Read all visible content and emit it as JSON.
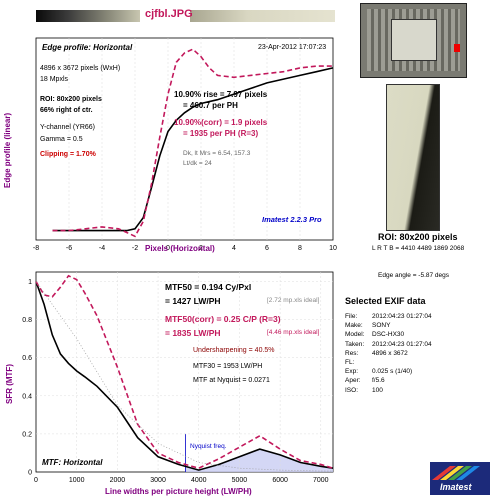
{
  "file_title": "cjfbl.JPG",
  "edge": {
    "title": "Edge profile: Horizontal",
    "date": "23-Apr-2012 17:07:23",
    "pixels": "4896 x 3672 pixels (WxH)",
    "mpxls": "18 Mpxls",
    "roi": "ROI: 80x200 pixels",
    "roi_pos": "66% right of ctr.",
    "channel": "Y-channel  (YR66)",
    "gamma": "Gamma = 0.5",
    "clipping": "Clipping = 1.70%",
    "rise": "10.90% rise = 7.97 pixels",
    "rise_ph": "= 460.7 per PH",
    "rise_corr": "10.90%(corr) = 1.9 pixels",
    "rise_corr_ph": "= 1935 per PH  (R=3)",
    "dk_lt": "Dk, lt Mrs = 6.54, 157.3",
    "ltdk": "Lt/dk = 24",
    "version": "Imatest 2.2.3 Pro",
    "ylabel": "Edge profile (linear)",
    "xlabel": "Pixels (Horizontal)"
  },
  "mtf": {
    "mtf50": "MTF50 = 0.194 Cy/Pxl",
    "mtf50_lw": "= 1427 LW/PH",
    "ideal1": "[2.72 mp.xls ideal]",
    "mtf50_corr": "MTF50(corr) = 0.25 C/P  (R=3)",
    "mtf50_corr_lw": "= 1835 LW/PH",
    "ideal2": "[4.46 mp.xls ideal]",
    "undersharp": "Undersharpening = 40.5%",
    "mtf30": "MTF30 = 1953 LW/PH",
    "nyq_val": "MTF at Nyquist = 0.0271",
    "nyq_label": "Nyquist freq.",
    "title": "MTF: Horizontal",
    "ylabel": "SFR (MTF)",
    "xlabel": "Line widths per picture height (LW/PH)"
  },
  "roi_panel": {
    "label": "ROI: 80x200 pixels",
    "lrtb": "L R T B = 4410 4489 1869 2068",
    "edge_angle": "Edge angle = -5.87 degs"
  },
  "exif": {
    "title": "Selected EXIF data",
    "rows": [
      {
        "k": "File:",
        "v": "2012:04:23 01:27:04"
      },
      {
        "k": "Make:",
        "v": "SONY"
      },
      {
        "k": "Model:",
        "v": "DSC-HX30"
      },
      {
        "k": "Taken:",
        "v": "2012:04:23 01:27:04"
      },
      {
        "k": "Res:",
        "v": "4896 x 3672"
      },
      {
        "k": "FL:",
        "v": ""
      },
      {
        "k": "Exp:",
        "v": "0.025 s  (1/40)"
      },
      {
        "k": "Aper:",
        "v": "f/5.6"
      },
      {
        "k": "ISO:",
        "v": "100"
      }
    ]
  },
  "logo": "Imatest",
  "colors": {
    "corrected": "#c2185b",
    "raw": "#000000",
    "accent_red": "#cc0000",
    "blue": "#0000c8",
    "purple": "#800080"
  },
  "chart_data": [
    {
      "type": "line",
      "title": "Edge profile: Horizontal",
      "xlabel": "Pixels (Horizontal)",
      "ylabel": "Edge profile (linear)",
      "xlim": [
        -8,
        10
      ],
      "ylim": [
        0,
        1.08
      ],
      "xticks": [
        "-8",
        "-6",
        "-4",
        "-2",
        "0",
        "2",
        "4",
        "6",
        "8",
        "10"
      ],
      "series": [
        {
          "style": "solid",
          "x": [
            -7,
            -6,
            -5,
            -4,
            -3,
            -2.5,
            -2,
            -1.5,
            -1,
            -0.5,
            0,
            0.5,
            1,
            1.5,
            2,
            3,
            4,
            5,
            6,
            7,
            8,
            9,
            10
          ],
          "y": [
            0.05,
            0.05,
            0.05,
            0.05,
            0.05,
            0.05,
            0.06,
            0.12,
            0.28,
            0.45,
            0.58,
            0.64,
            0.68,
            0.71,
            0.73,
            0.75,
            0.78,
            0.81,
            0.84,
            0.86,
            0.88,
            0.9,
            0.92
          ]
        },
        {
          "style": "dashed",
          "x": [
            -7,
            -6,
            -5,
            -4,
            -3,
            -2.5,
            -2,
            -1.5,
            -1,
            -0.5,
            0,
            0.5,
            1,
            1.5,
            2,
            2.5,
            3,
            4,
            5,
            6,
            7,
            8,
            9,
            10
          ],
          "y": [
            0.05,
            0.05,
            0.06,
            0.07,
            0.06,
            0.04,
            0.02,
            0.1,
            0.3,
            0.55,
            0.78,
            0.95,
            1.0,
            1.02,
            0.98,
            0.92,
            0.88,
            0.87,
            0.88,
            0.89,
            0.9,
            0.92,
            0.93,
            0.93
          ]
        }
      ]
    },
    {
      "type": "line",
      "title": "MTF: Horizontal",
      "xlabel": "Line widths per picture height (LW/PH)",
      "ylabel": "SFR (MTF)",
      "xlim": [
        0,
        7300
      ],
      "ylim": [
        0,
        1.05
      ],
      "xticks": [
        "0",
        "1000",
        "2000",
        "3000",
        "4000",
        "5000",
        "6000",
        "7000"
      ],
      "yticks": [
        "0",
        "0.2",
        "0.4",
        "0.6",
        "0.8",
        "1"
      ],
      "nyquist": 3672,
      "series": [
        {
          "style": "solid",
          "x": [
            0,
            200,
            400,
            600,
            800,
            1000,
            1200,
            1500,
            2000,
            2500,
            3000,
            3500,
            4000,
            4500,
            5000,
            5500,
            6000,
            6500,
            7000,
            7300
          ],
          "y": [
            1,
            0.88,
            0.72,
            0.62,
            0.57,
            0.53,
            0.5,
            0.45,
            0.34,
            0.18,
            0.08,
            0.04,
            0.01,
            0.04,
            0.08,
            0.12,
            0.09,
            0.05,
            0.03,
            0.02
          ]
        },
        {
          "style": "dashed",
          "x": [
            0,
            200,
            400,
            600,
            800,
            1000,
            1200,
            1500,
            2000,
            2500,
            3000,
            3500,
            4000,
            4500,
            5000,
            5500,
            6000,
            6500,
            7000,
            7300
          ],
          "y": [
            1,
            0.93,
            0.92,
            0.97,
            1.03,
            1.01,
            0.94,
            0.82,
            0.55,
            0.25,
            0.1,
            0.05,
            0.02,
            0.07,
            0.13,
            0.19,
            0.12,
            0.06,
            0.04,
            0.02
          ]
        },
        {
          "style": "dotted",
          "x": [
            0,
            1000,
            2000,
            3000,
            4000,
            5000,
            6000,
            7000,
            7300
          ],
          "y": [
            1,
            0.7,
            0.35,
            0.15,
            0.05,
            0.02,
            0.01,
            0.005,
            0.005
          ]
        }
      ]
    }
  ]
}
